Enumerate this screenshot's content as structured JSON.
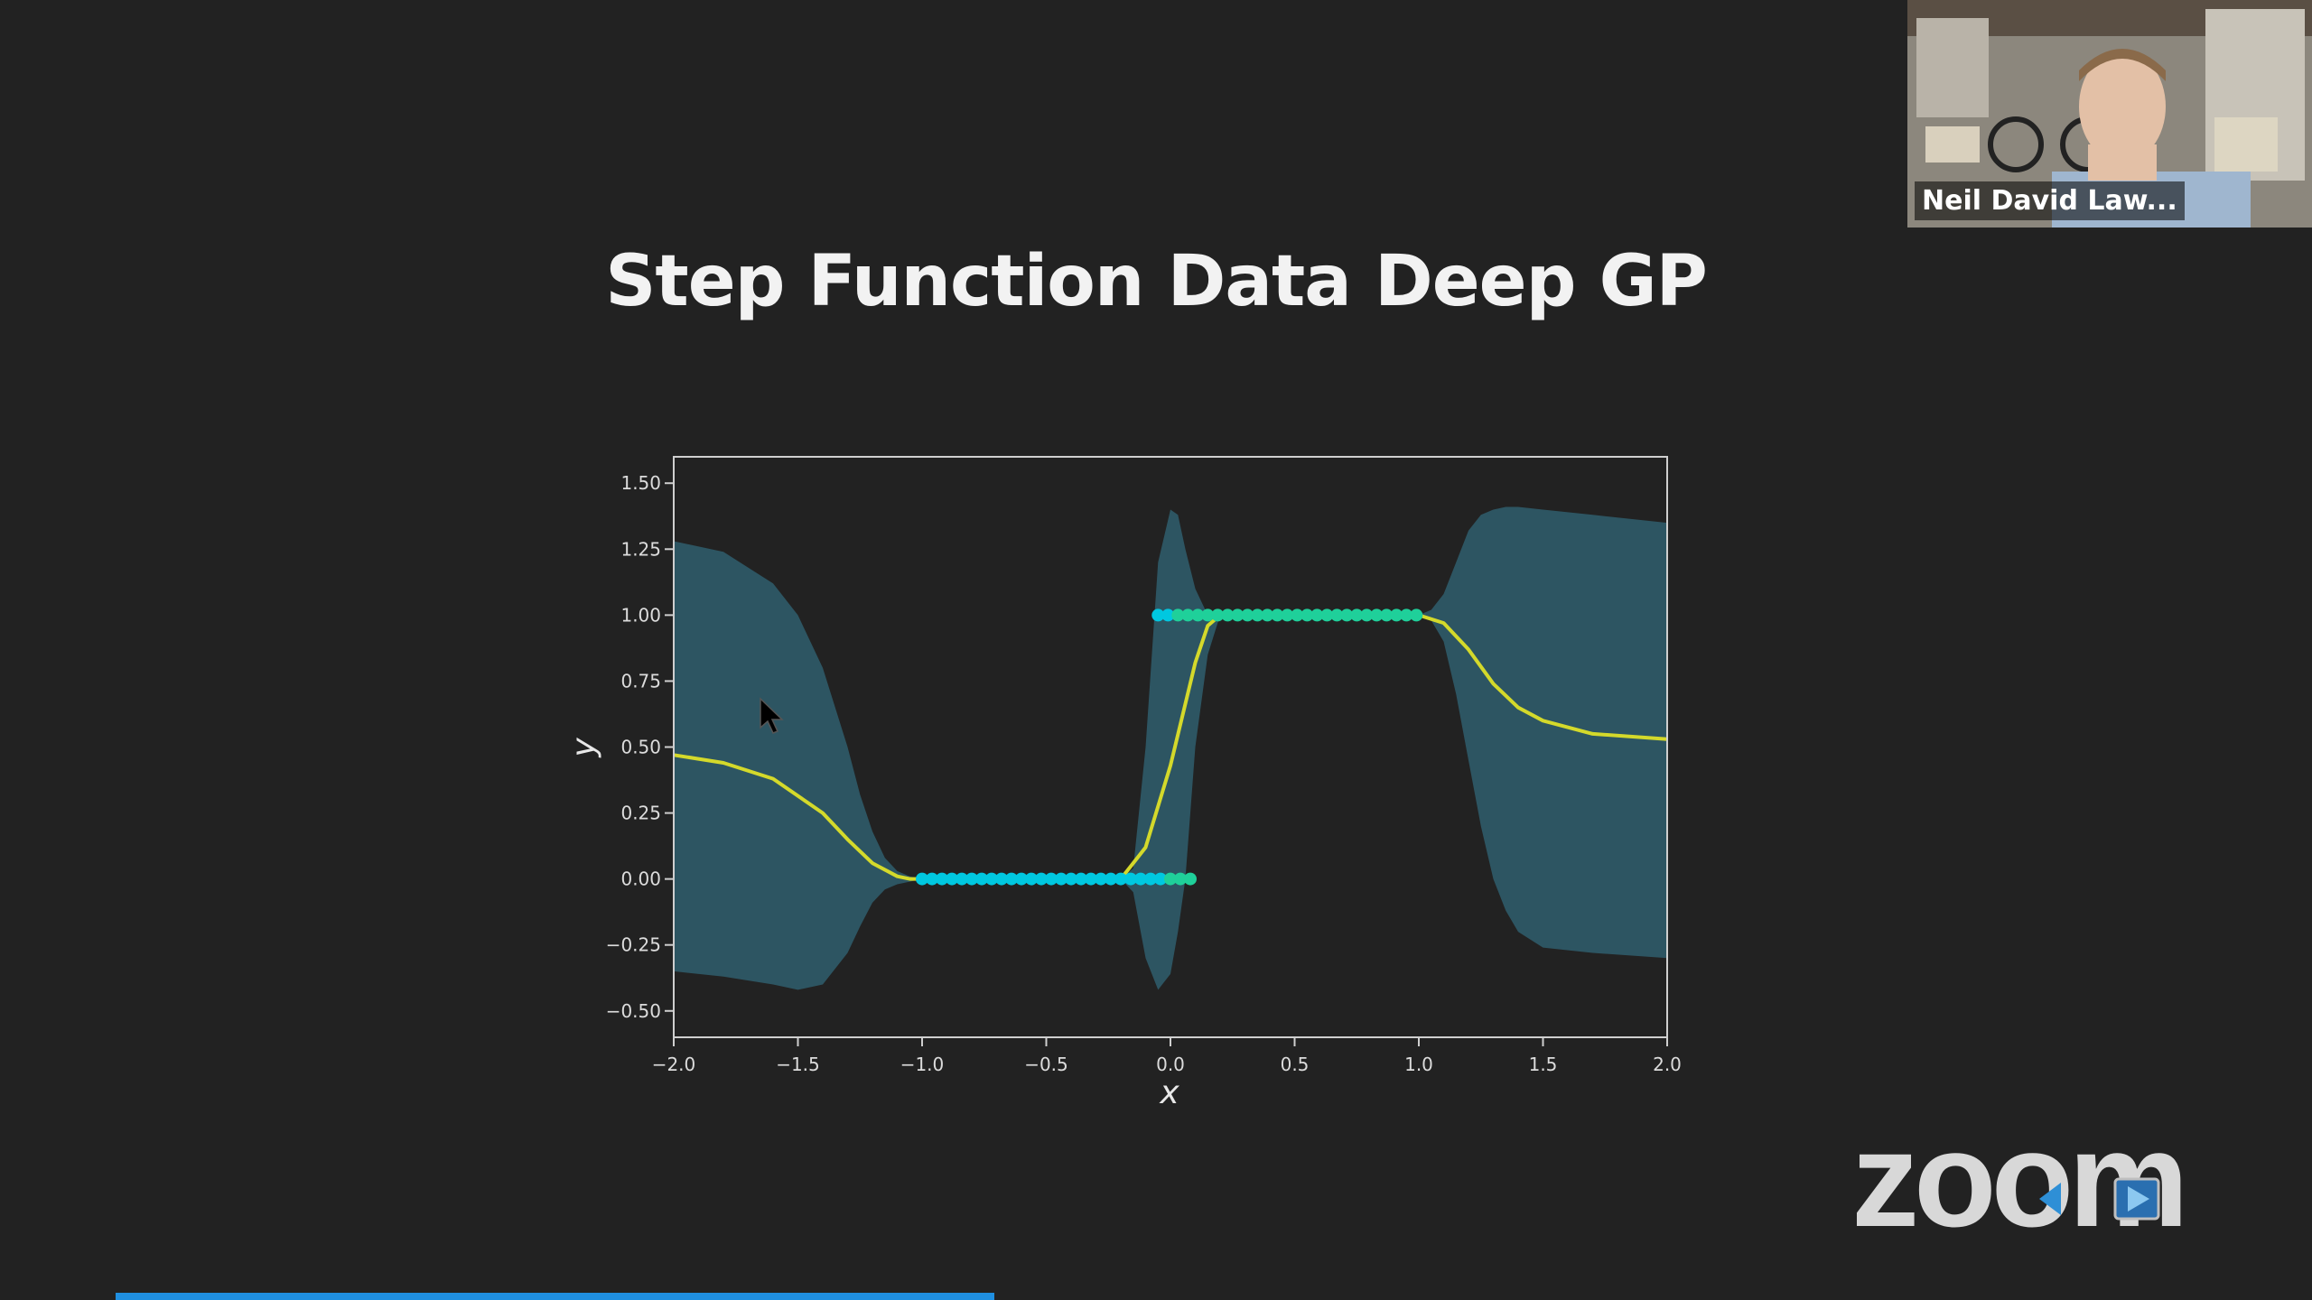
{
  "slide": {
    "title": "Step Function Data Deep GP"
  },
  "video": {
    "participant_name": "Neil David Law..."
  },
  "branding": {
    "logo_text": "zoom"
  },
  "colors": {
    "background": "#222222",
    "uncertainty_band": "#2e5966",
    "mean_line": "#d4d92b",
    "data_points_start": "#00c8e0",
    "data_points_end": "#1fd09a",
    "progress_bar": "#1f8fe0"
  },
  "progress": {
    "fraction": 0.4
  },
  "chart_data": {
    "type": "line",
    "xlabel": "x",
    "ylabel": "y",
    "xlim": [
      -2.0,
      2.0
    ],
    "ylim": [
      -0.6,
      1.6
    ],
    "x_ticks": [
      "−2.0",
      "−1.5",
      "−1.0",
      "−0.5",
      "0.0",
      "0.5",
      "1.0",
      "1.5",
      "2.0"
    ],
    "x_tick_values": [
      -2.0,
      -1.5,
      -1.0,
      -0.5,
      0.0,
      0.5,
      1.0,
      1.5,
      2.0
    ],
    "y_ticks": [
      "1.50",
      "1.25",
      "1.00",
      "0.75",
      "0.50",
      "0.25",
      "0.00",
      "−0.25",
      "−0.50"
    ],
    "y_tick_values": [
      1.5,
      1.25,
      1.0,
      0.75,
      0.5,
      0.25,
      0.0,
      -0.25,
      -0.5
    ],
    "grid": false,
    "series": [
      {
        "kind": "mean",
        "x": [
          -2.0,
          -1.8,
          -1.6,
          -1.4,
          -1.3,
          -1.2,
          -1.1,
          -1.05,
          -1.0,
          -0.5,
          -0.2,
          -0.1,
          0.0,
          0.1,
          0.15,
          0.2,
          0.5,
          1.0,
          1.1,
          1.2,
          1.3,
          1.4,
          1.5,
          1.7,
          2.0
        ],
        "y": [
          0.47,
          0.44,
          0.38,
          0.25,
          0.15,
          0.06,
          0.01,
          0.0,
          0.0,
          0.0,
          0.0,
          0.12,
          0.43,
          0.82,
          0.96,
          1.0,
          1.0,
          1.0,
          0.97,
          0.87,
          0.74,
          0.65,
          0.6,
          0.55,
          0.53
        ]
      },
      {
        "kind": "band",
        "x": [
          -2.0,
          -1.8,
          -1.6,
          -1.5,
          -1.4,
          -1.3,
          -1.25,
          -1.2,
          -1.15,
          -1.1,
          -1.05,
          -1.0,
          -0.5,
          -0.2,
          -0.15,
          -0.1,
          -0.05,
          0.0,
          0.03,
          0.06,
          0.1,
          0.15,
          0.2,
          0.5,
          1.0,
          1.05,
          1.1,
          1.15,
          1.2,
          1.25,
          1.3,
          1.35,
          1.4,
          1.5,
          1.7,
          2.0
        ],
        "upper": [
          1.28,
          1.24,
          1.12,
          1.0,
          0.8,
          0.5,
          0.32,
          0.18,
          0.08,
          0.03,
          0.01,
          0.0,
          0.0,
          0.0,
          0.04,
          0.5,
          1.2,
          1.4,
          1.38,
          1.25,
          1.1,
          1.0,
          1.0,
          1.0,
          1.0,
          1.02,
          1.08,
          1.2,
          1.32,
          1.38,
          1.4,
          1.41,
          1.41,
          1.4,
          1.38,
          1.35
        ],
        "lower": [
          -0.35,
          -0.37,
          -0.4,
          -0.42,
          -0.4,
          -0.28,
          -0.18,
          -0.09,
          -0.04,
          -0.02,
          -0.01,
          0.0,
          0.0,
          0.0,
          -0.05,
          -0.3,
          -0.42,
          -0.36,
          -0.2,
          0.0,
          0.5,
          0.85,
          1.0,
          1.0,
          1.0,
          0.98,
          0.9,
          0.7,
          0.45,
          0.2,
          0.0,
          -0.12,
          -0.2,
          -0.26,
          -0.28,
          -0.3
        ]
      },
      {
        "kind": "points",
        "x": [
          -1.0,
          -0.96,
          -0.92,
          -0.88,
          -0.84,
          -0.8,
          -0.76,
          -0.72,
          -0.68,
          -0.64,
          -0.6,
          -0.56,
          -0.52,
          -0.48,
          -0.44,
          -0.4,
          -0.36,
          -0.32,
          -0.28,
          -0.24,
          -0.2,
          -0.16,
          -0.12,
          -0.08,
          -0.04,
          0.0,
          0.04,
          0.08,
          -0.05,
          -0.01,
          0.03,
          0.07,
          0.11,
          0.15,
          0.19,
          0.23,
          0.27,
          0.31,
          0.35,
          0.39,
          0.43,
          0.47,
          0.51,
          0.55,
          0.59,
          0.63,
          0.67,
          0.71,
          0.75,
          0.79,
          0.83,
          0.87,
          0.91,
          0.95,
          0.99
        ],
        "y": [
          0,
          0,
          0,
          0,
          0,
          0,
          0,
          0,
          0,
          0,
          0,
          0,
          0,
          0,
          0,
          0,
          0,
          0,
          0,
          0,
          0,
          0,
          0,
          0,
          0,
          0,
          0,
          0,
          1,
          1,
          1,
          1,
          1,
          1,
          1,
          1,
          1,
          1,
          1,
          1,
          1,
          1,
          1,
          1,
          1,
          1,
          1,
          1,
          1,
          1,
          1,
          1,
          1,
          1,
          1
        ]
      }
    ]
  }
}
